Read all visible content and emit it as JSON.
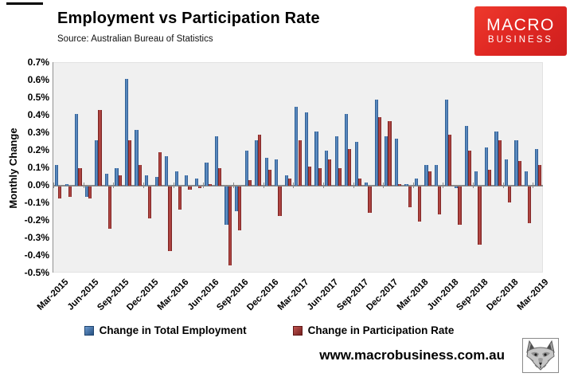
{
  "header": {
    "title": "Employment vs Participation Rate",
    "source": "Source: Australian Bureau of Statistics",
    "logo": {
      "line1": "MACRO",
      "line2": "BUSINESS",
      "bg_color": "#e02823",
      "text_color": "#ffffff"
    }
  },
  "footer": {
    "url": "www.macrobusiness.com.au"
  },
  "legend": {
    "items": [
      {
        "label": "Change in Total Employment",
        "color": "#3a6aa5"
      },
      {
        "label": "Change in Participation Rate",
        "color": "#a63532"
      }
    ]
  },
  "chart_data": {
    "type": "bar",
    "title": "Employment vs Participation Rate",
    "source": "Source: Australian Bureau of Statistics",
    "ylabel": "Monthly Change",
    "ylim": [
      -0.5,
      0.7
    ],
    "ytick_step": 0.1,
    "yticks": [
      "0.7%",
      "0.6%",
      "0.5%",
      "0.4%",
      "0.3%",
      "0.2%",
      "0.1%",
      "0.0%",
      "-0.1%",
      "-0.2%",
      "-0.3%",
      "-0.4%",
      "-0.5%"
    ],
    "grid": false,
    "legend_position": "bottom-center",
    "x_tick_interval": 3,
    "x_tick_labels": [
      "Mar-2015",
      "Jun-2015",
      "Sep-2015",
      "Dec-2015",
      "Mar-2016",
      "Jun-2016",
      "Sep-2016",
      "Dec-2016",
      "Mar-2017",
      "Jun-2017",
      "Sep-2017",
      "Dec-2017",
      "Mar-2018",
      "Jun-2018",
      "Sep-2018",
      "Dec-2018",
      "Mar-2019"
    ],
    "categories": [
      "Mar-2015",
      "Apr-2015",
      "May-2015",
      "Jun-2015",
      "Jul-2015",
      "Aug-2015",
      "Sep-2015",
      "Oct-2015",
      "Nov-2015",
      "Dec-2015",
      "Jan-2016",
      "Feb-2016",
      "Mar-2016",
      "Apr-2016",
      "May-2016",
      "Jun-2016",
      "Jul-2016",
      "Aug-2016",
      "Sep-2016",
      "Oct-2016",
      "Nov-2016",
      "Dec-2016",
      "Jan-2017",
      "Feb-2017",
      "Mar-2017",
      "Apr-2017",
      "May-2017",
      "Jun-2017",
      "Jul-2017",
      "Aug-2017",
      "Sep-2017",
      "Oct-2017",
      "Nov-2017",
      "Dec-2017",
      "Jan-2018",
      "Feb-2018",
      "Mar-2018",
      "Apr-2018",
      "May-2018",
      "Jun-2018",
      "Jul-2018",
      "Aug-2018",
      "Sep-2018",
      "Oct-2018",
      "Nov-2018",
      "Dec-2018",
      "Jan-2019",
      "Feb-2019",
      "Mar-2019"
    ],
    "series": [
      {
        "name": "Change in Total Employment",
        "color": "#3a6aa5",
        "values": [
          0.12,
          0.01,
          0.41,
          -0.06,
          0.26,
          0.07,
          0.1,
          0.61,
          0.32,
          0.06,
          0.05,
          0.17,
          0.08,
          0.06,
          0.04,
          0.13,
          0.28,
          -0.22,
          -0.14,
          0.2,
          0.26,
          0.16,
          0.15,
          0.06,
          0.45,
          0.42,
          0.31,
          0.2,
          0.28,
          0.41,
          0.25,
          0.02,
          0.49,
          0.28,
          0.27,
          0.01,
          0.04,
          0.12,
          0.12,
          0.49,
          -0.01,
          0.34,
          0.08,
          0.22,
          0.31,
          0.15,
          0.26,
          0.08,
          0.21
        ]
      },
      {
        "name": "Change in Participation Rate",
        "color": "#a63532",
        "values": [
          -0.07,
          -0.06,
          0.1,
          -0.07,
          0.43,
          -0.24,
          0.06,
          0.26,
          0.12,
          -0.18,
          0.19,
          -0.37,
          -0.13,
          -0.02,
          -0.01,
          0.01,
          0.1,
          -0.45,
          -0.25,
          0.03,
          0.29,
          0.09,
          -0.17,
          0.04,
          0.26,
          0.11,
          0.1,
          0.15,
          0.1,
          0.21,
          0.04,
          -0.15,
          0.39,
          0.37,
          0.01,
          -0.12,
          -0.2,
          0.08,
          -0.16,
          0.29,
          -0.22,
          0.2,
          -0.33,
          0.09,
          0.26,
          -0.09,
          0.14,
          -0.21,
          0.12
        ]
      }
    ]
  }
}
